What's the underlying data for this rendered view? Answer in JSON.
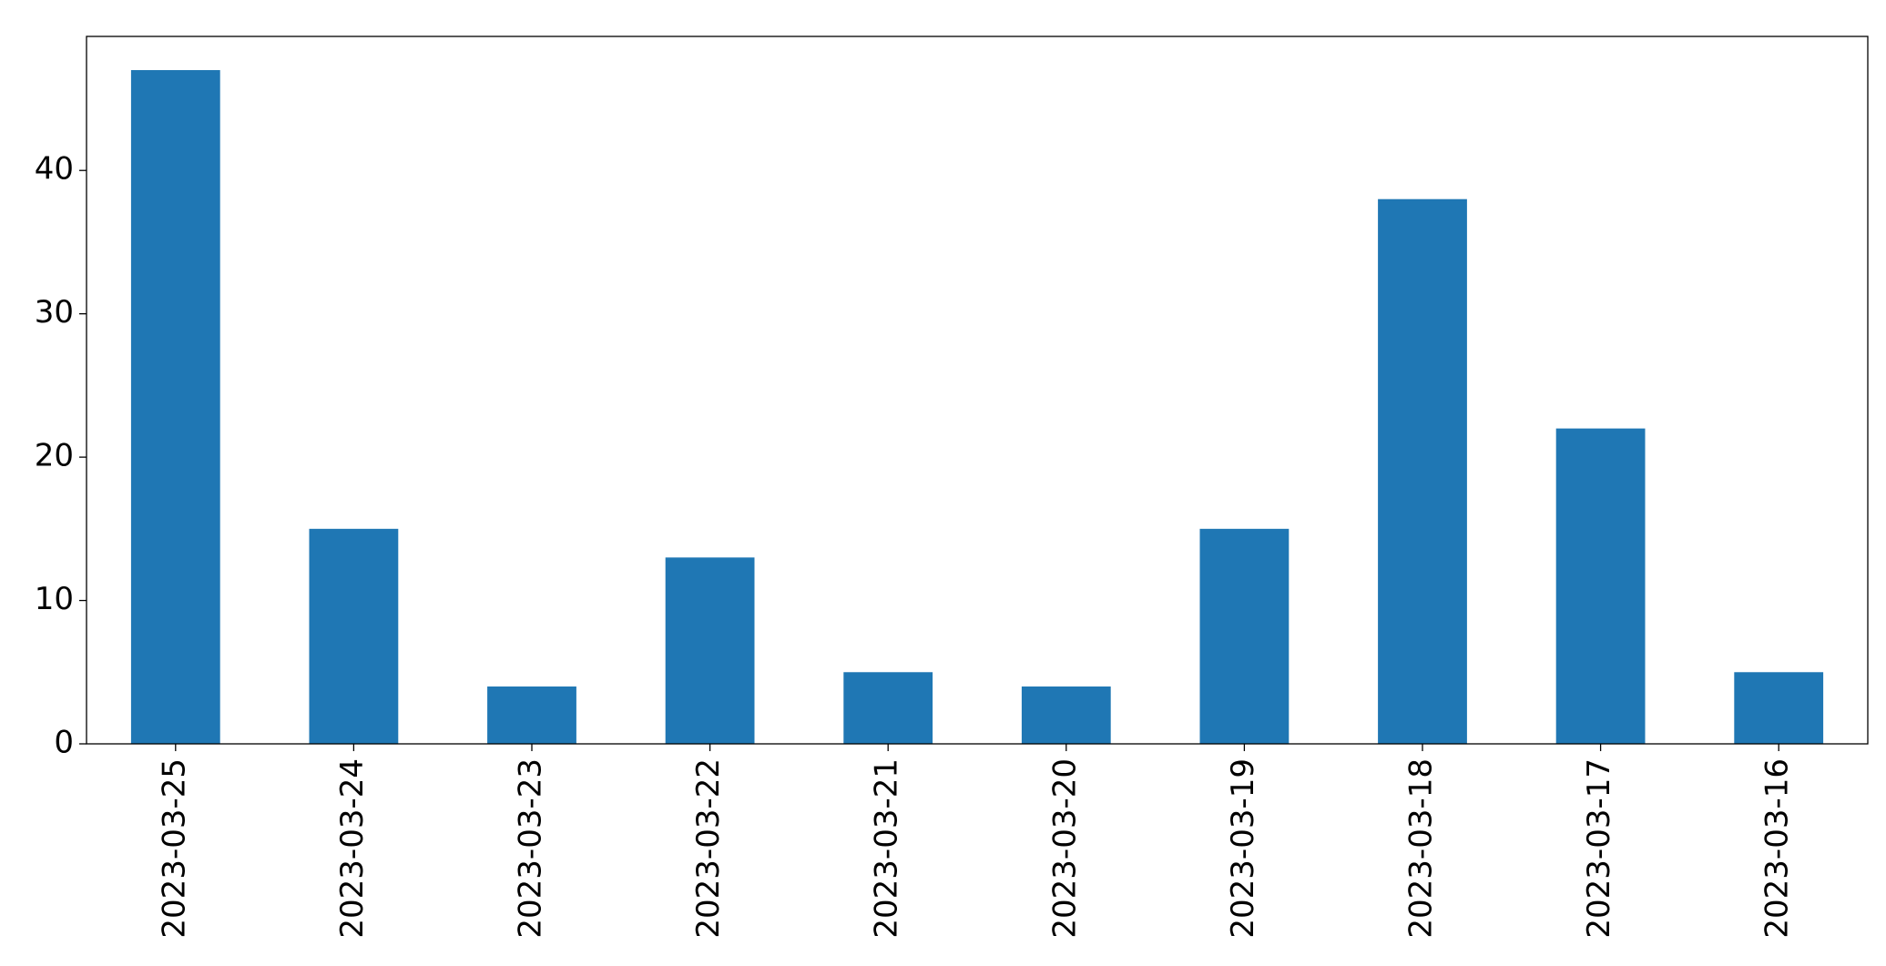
{
  "chart_data": {
    "type": "bar",
    "categories": [
      "2023-03-25",
      "2023-03-24",
      "2023-03-23",
      "2023-03-22",
      "2023-03-21",
      "2023-03-20",
      "2023-03-19",
      "2023-03-18",
      "2023-03-17",
      "2023-03-16"
    ],
    "values": [
      47,
      15,
      4,
      13,
      5,
      4,
      15,
      38,
      22,
      5
    ],
    "color": "#1f77b4",
    "ylim": [
      0,
      49.35
    ],
    "yticks": [
      0,
      10,
      20,
      30,
      40
    ],
    "grid": false
  }
}
